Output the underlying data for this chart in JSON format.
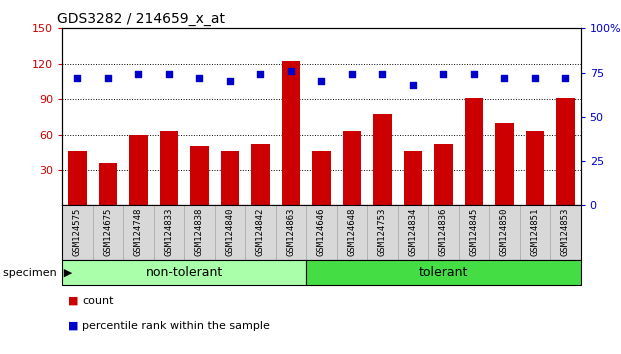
{
  "title": "GDS3282 / 214659_x_at",
  "categories": [
    "GSM124575",
    "GSM124675",
    "GSM124748",
    "GSM124833",
    "GSM124838",
    "GSM124840",
    "GSM124842",
    "GSM124863",
    "GSM124646",
    "GSM124648",
    "GSM124753",
    "GSM124834",
    "GSM124836",
    "GSM124845",
    "GSM124850",
    "GSM124851",
    "GSM124853"
  ],
  "bar_values": [
    46,
    36,
    60,
    63,
    50,
    46,
    52,
    122,
    46,
    63,
    77,
    46,
    52,
    91,
    70,
    63,
    91
  ],
  "dot_values_pct": [
    72,
    72,
    74,
    74,
    72,
    70,
    74,
    76,
    70,
    74,
    74,
    68,
    74,
    74,
    72,
    72,
    72
  ],
  "bar_color": "#cc0000",
  "dot_color": "#0000cc",
  "ylim_left": [
    0,
    150
  ],
  "ylim_right": [
    0,
    100
  ],
  "yticks_left": [
    30,
    60,
    90,
    120,
    150
  ],
  "yticks_right": [
    0,
    25,
    50,
    75,
    100
  ],
  "non_tolerant_count": 8,
  "tolerant_count": 9,
  "non_tolerant_color": "#aaffaa",
  "tolerant_color": "#44dd44",
  "plot_bg": "#ffffff",
  "tick_bg": "#d8d8d8",
  "legend_items": [
    "count",
    "percentile rank within the sample"
  ],
  "specimen_label": "specimen"
}
